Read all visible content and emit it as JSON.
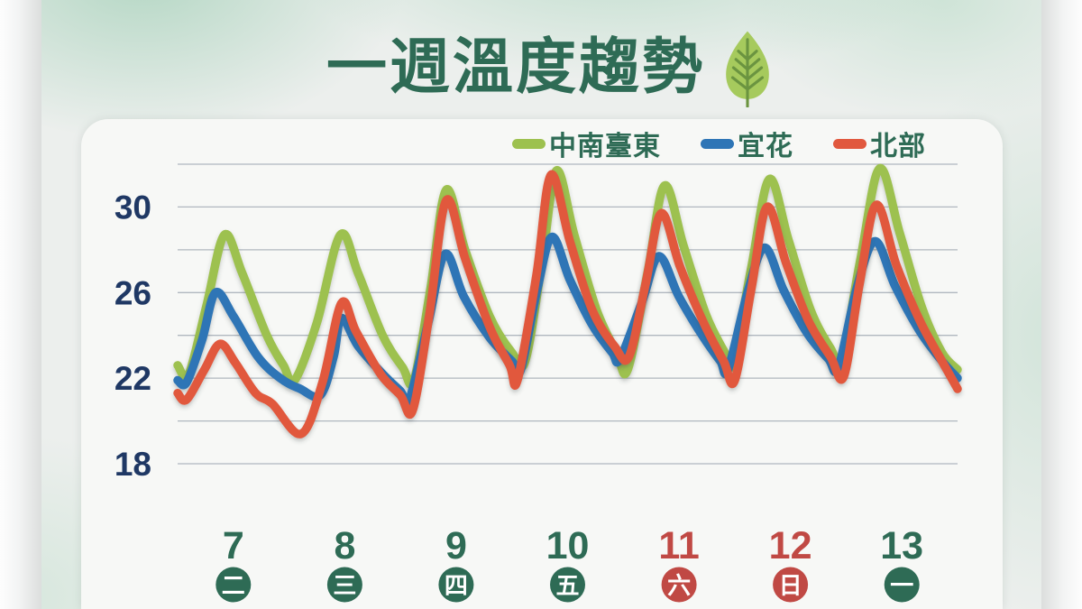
{
  "title": {
    "text": "一週溫度趨勢"
  },
  "legend": {
    "items": [
      {
        "label": "中南臺東",
        "color": "#9dc14f"
      },
      {
        "label": "宜花",
        "color": "#2e75b6"
      },
      {
        "label": "北部",
        "color": "#e1583e"
      }
    ]
  },
  "chart_data": {
    "type": "line",
    "title": "一週溫度趨勢",
    "ylabel": "",
    "xlabel": "",
    "y_axis": {
      "min": 18,
      "max": 32,
      "gridline_step": 2,
      "labeled_ticks": [
        30,
        26,
        22,
        18
      ]
    },
    "x_axis": {
      "days": [
        {
          "date": "7",
          "weekday": "二",
          "is_weekend": false
        },
        {
          "date": "8",
          "weekday": "三",
          "is_weekend": false
        },
        {
          "date": "9",
          "weekday": "四",
          "is_weekend": false
        },
        {
          "date": "10",
          "weekday": "五",
          "is_weekend": false
        },
        {
          "date": "11",
          "weekday": "六",
          "is_weekend": true
        },
        {
          "date": "12",
          "weekday": "日",
          "is_weekend": true
        },
        {
          "date": "13",
          "weekday": "一",
          "is_weekend": false
        }
      ]
    },
    "colors": {
      "weekday_label": "#2e6b55",
      "weekend_label": "#c04944",
      "y_tick_label": "#1f3864",
      "gridline": "#a3abb5",
      "title_green": "#2e6b55",
      "leaf_fill": "#a6ca5d",
      "leaf_vein": "#6b9440"
    },
    "time_unit": "days (t within 0–7, one diurnal cycle per date)",
    "value_unit": "temperature",
    "series": [
      {
        "name": "中南臺東",
        "color": "#9dc14f",
        "points": [
          [
            0.0,
            22.6
          ],
          [
            0.1,
            22.2
          ],
          [
            0.26,
            25.4
          ],
          [
            0.42,
            28.7
          ],
          [
            0.58,
            26.9
          ],
          [
            0.8,
            24.0
          ],
          [
            0.95,
            22.6
          ],
          [
            1.05,
            21.9
          ],
          [
            1.25,
            24.6
          ],
          [
            1.46,
            28.7
          ],
          [
            1.62,
            26.9
          ],
          [
            1.84,
            24.0
          ],
          [
            2.02,
            22.5
          ],
          [
            2.12,
            21.9
          ],
          [
            2.27,
            26.2
          ],
          [
            2.41,
            30.8
          ],
          [
            2.58,
            28.0
          ],
          [
            2.8,
            24.9
          ],
          [
            3.0,
            23.2
          ],
          [
            3.12,
            22.8
          ],
          [
            3.27,
            27.4
          ],
          [
            3.4,
            31.7
          ],
          [
            3.56,
            28.7
          ],
          [
            3.76,
            25.2
          ],
          [
            3.94,
            23.2
          ],
          [
            4.04,
            22.4
          ],
          [
            4.22,
            27.0
          ],
          [
            4.37,
            31.0
          ],
          [
            4.54,
            28.2
          ],
          [
            4.74,
            25.0
          ],
          [
            4.9,
            23.3
          ],
          [
            4.98,
            22.7
          ],
          [
            5.15,
            27.2
          ],
          [
            5.31,
            31.3
          ],
          [
            5.48,
            28.5
          ],
          [
            5.68,
            25.2
          ],
          [
            5.86,
            23.4
          ],
          [
            5.96,
            22.9
          ],
          [
            6.13,
            27.6
          ],
          [
            6.3,
            31.8
          ],
          [
            6.48,
            28.8
          ],
          [
            6.68,
            25.3
          ],
          [
            6.86,
            23.2
          ],
          [
            7.0,
            22.4
          ]
        ]
      },
      {
        "name": "宜花",
        "color": "#2e75b6",
        "points": [
          [
            0.0,
            21.9
          ],
          [
            0.08,
            21.8
          ],
          [
            0.22,
            23.8
          ],
          [
            0.34,
            26.0
          ],
          [
            0.5,
            24.9
          ],
          [
            0.72,
            23.0
          ],
          [
            0.92,
            22.0
          ],
          [
            1.1,
            21.5
          ],
          [
            1.28,
            21.2
          ],
          [
            1.4,
            23.0
          ],
          [
            1.47,
            24.8
          ],
          [
            1.62,
            23.5
          ],
          [
            1.84,
            22.2
          ],
          [
            2.0,
            21.4
          ],
          [
            2.08,
            21.0
          ],
          [
            2.25,
            24.6
          ],
          [
            2.4,
            27.8
          ],
          [
            2.57,
            25.8
          ],
          [
            2.8,
            23.9
          ],
          [
            3.0,
            22.8
          ],
          [
            3.08,
            22.4
          ],
          [
            3.23,
            26.2
          ],
          [
            3.36,
            28.6
          ],
          [
            3.52,
            26.6
          ],
          [
            3.72,
            24.5
          ],
          [
            3.9,
            23.2
          ],
          [
            3.97,
            22.9
          ],
          [
            4.17,
            25.6
          ],
          [
            4.32,
            27.7
          ],
          [
            4.5,
            25.8
          ],
          [
            4.72,
            23.9
          ],
          [
            4.87,
            22.8
          ],
          [
            4.94,
            22.4
          ],
          [
            5.12,
            26.1
          ],
          [
            5.27,
            28.1
          ],
          [
            5.44,
            26.1
          ],
          [
            5.65,
            24.1
          ],
          [
            5.84,
            22.9
          ],
          [
            5.93,
            22.5
          ],
          [
            6.1,
            26.3
          ],
          [
            6.26,
            28.4
          ],
          [
            6.44,
            26.3
          ],
          [
            6.66,
            24.2
          ],
          [
            6.86,
            22.8
          ],
          [
            7.0,
            22.0
          ]
        ]
      },
      {
        "name": "北部",
        "color": "#e1583e",
        "points": [
          [
            0.0,
            21.3
          ],
          [
            0.08,
            21.0
          ],
          [
            0.24,
            22.4
          ],
          [
            0.38,
            23.6
          ],
          [
            0.52,
            22.7
          ],
          [
            0.7,
            21.3
          ],
          [
            0.85,
            20.8
          ],
          [
            1.11,
            19.4
          ],
          [
            1.3,
            21.8
          ],
          [
            1.47,
            25.5
          ],
          [
            1.6,
            24.2
          ],
          [
            1.82,
            22.2
          ],
          [
            2.0,
            21.2
          ],
          [
            2.11,
            20.5
          ],
          [
            2.26,
            25.0
          ],
          [
            2.41,
            30.3
          ],
          [
            2.58,
            27.6
          ],
          [
            2.8,
            24.4
          ],
          [
            2.98,
            22.6
          ],
          [
            3.05,
            21.9
          ],
          [
            3.22,
            26.8
          ],
          [
            3.35,
            31.5
          ],
          [
            3.52,
            28.4
          ],
          [
            3.72,
            25.2
          ],
          [
            3.92,
            23.5
          ],
          [
            4.05,
            23.0
          ],
          [
            4.2,
            26.4
          ],
          [
            4.34,
            29.7
          ],
          [
            4.51,
            27.2
          ],
          [
            4.72,
            24.6
          ],
          [
            4.9,
            22.8
          ],
          [
            5.0,
            21.9
          ],
          [
            5.15,
            26.2
          ],
          [
            5.29,
            30.0
          ],
          [
            5.46,
            27.4
          ],
          [
            5.66,
            24.7
          ],
          [
            5.86,
            23.0
          ],
          [
            5.98,
            22.1
          ],
          [
            6.12,
            26.4
          ],
          [
            6.27,
            30.1
          ],
          [
            6.45,
            27.3
          ],
          [
            6.66,
            24.7
          ],
          [
            6.86,
            22.8
          ],
          [
            7.0,
            21.5
          ]
        ]
      }
    ]
  }
}
